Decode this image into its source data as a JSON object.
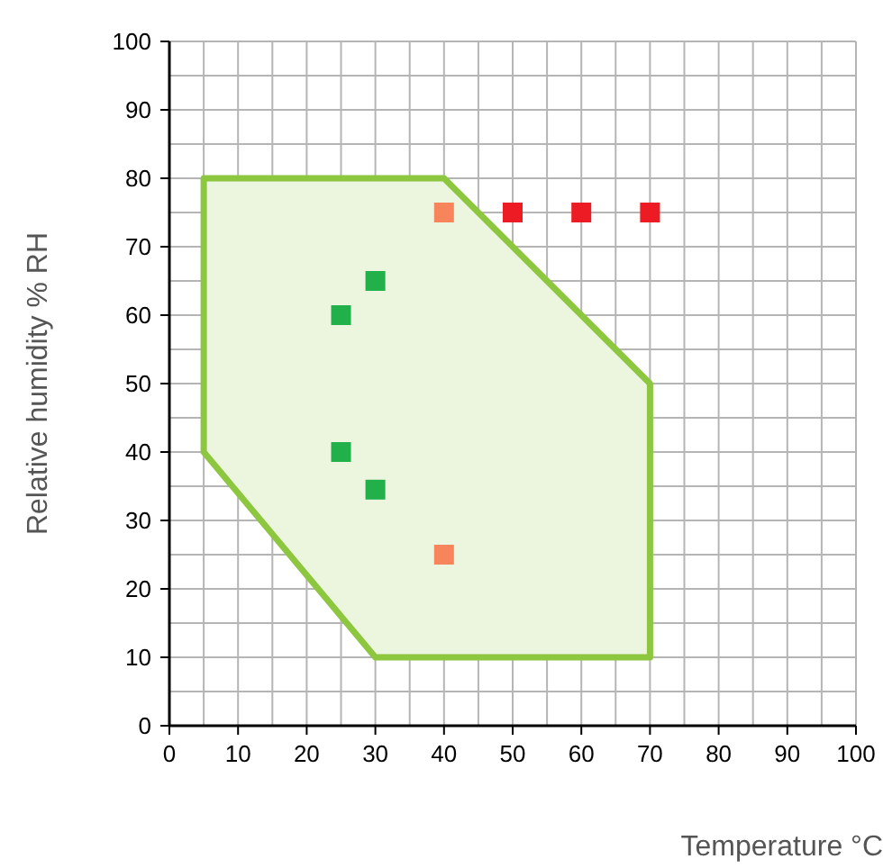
{
  "chart_data": {
    "type": "scatter",
    "xlabel": "Temperature °C",
    "ylabel": "Relative humidity % RH",
    "xlim": [
      0,
      100
    ],
    "ylim": [
      0,
      100
    ],
    "xticks": [
      0,
      {
        "value": 5,
        "label": null
      },
      10,
      {
        "value": 15,
        "label": null
      },
      20,
      {
        "value": 25,
        "label": null
      },
      30,
      {
        "value": 35,
        "label": null
      },
      40,
      {
        "value": 45,
        "label": null
      },
      50,
      {
        "value": 55,
        "label": null
      },
      60,
      {
        "value": 65,
        "label": null
      },
      70,
      {
        "value": 75,
        "label": null
      },
      80,
      {
        "value": 85,
        "label": null
      },
      90,
      {
        "value": 95,
        "label": null
      },
      100
    ],
    "yticks": [
      0,
      {
        "value": 5,
        "label": null
      },
      10,
      {
        "value": 15,
        "label": null
      },
      20,
      {
        "value": 25,
        "label": null
      },
      30,
      {
        "value": 35,
        "label": null
      },
      40,
      {
        "value": 45,
        "label": null
      },
      50,
      {
        "value": 55,
        "label": null
      },
      60,
      {
        "value": 65,
        "label": null
      },
      70,
      {
        "value": 75,
        "label": null
      },
      80,
      {
        "value": 85,
        "label": null
      },
      90,
      {
        "value": 95,
        "label": null
      },
      100
    ],
    "grid": true,
    "marker": "square",
    "series": [
      {
        "type": "area",
        "marker": "none",
        "color": "#8dc63f",
        "x": [
          5,
          40,
          70,
          70,
          30,
          5,
          5
        ],
        "values": [
          80,
          80,
          50,
          10,
          10,
          40,
          80
        ]
      },
      {
        "color": "#22b04b",
        "x": [
          25,
          30,
          25,
          30
        ],
        "values": [
          60,
          65,
          40,
          34.5
        ]
      },
      {
        "color": "#f7845a",
        "x": [
          40,
          40
        ],
        "values": [
          75,
          25
        ]
      },
      {
        "color": "#ed1c24",
        "x": [
          50,
          60,
          70
        ],
        "values": [
          75,
          75,
          75
        ]
      }
    ]
  }
}
